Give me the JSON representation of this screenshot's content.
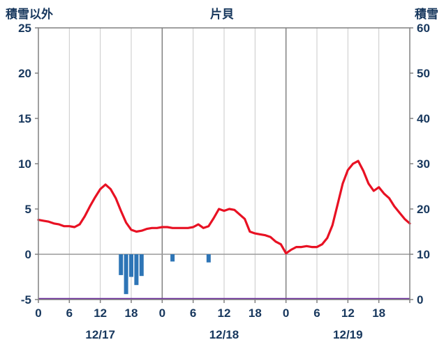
{
  "chart_data": {
    "type": "line+bar",
    "title": "片貝",
    "left_axis": {
      "label": "積雪以外",
      "min": -5,
      "max": 25,
      "ticks": [
        25,
        20,
        15,
        10,
        5,
        0,
        -5
      ]
    },
    "right_axis": {
      "label": "積雪",
      "min": 0,
      "max": 60,
      "ticks": [
        60,
        50,
        40,
        30,
        20,
        10,
        0
      ]
    },
    "x_axis": {
      "days": [
        "12/17",
        "12/18",
        "12/19"
      ],
      "hour_ticks": [
        0,
        6,
        12,
        18
      ],
      "total_hours": 72
    },
    "grid": {
      "minor_color": "#c8c8c8",
      "day_color": "#808080",
      "zero_line_color": "#9a9a9a",
      "border_color": "#808080"
    },
    "text_color": "#17375d",
    "series": [
      {
        "name": "temperature-line",
        "type": "line",
        "axis": "left",
        "color": "#e81123",
        "step_hours": 1,
        "values": [
          3.8,
          3.7,
          3.6,
          3.4,
          3.3,
          3.1,
          3.1,
          3.0,
          3.3,
          4.2,
          5.3,
          6.3,
          7.2,
          7.7,
          7.2,
          6.2,
          4.8,
          3.5,
          2.7,
          2.5,
          2.6,
          2.8,
          2.9,
          2.9,
          3.0,
          3.0,
          2.9,
          2.9,
          2.9,
          2.9,
          3.0,
          3.3,
          2.9,
          3.1,
          4.0,
          5.0,
          4.8,
          5.0,
          4.9,
          4.4,
          3.9,
          2.5,
          2.3,
          2.2,
          2.1,
          1.9,
          1.4,
          1.1,
          0.1,
          0.5,
          0.8,
          0.8,
          0.9,
          0.8,
          0.8,
          1.1,
          1.8,
          3.2,
          5.5,
          7.8,
          9.3,
          10.0,
          10.3,
          9.2,
          7.8,
          7.0,
          7.4,
          6.7,
          6.2,
          5.3,
          4.6,
          3.9,
          3.4
        ]
      },
      {
        "name": "precipitation-bars",
        "type": "bar",
        "axis": "left",
        "color": "#2e75b6",
        "points": [
          {
            "hour": 16,
            "value": -2.3
          },
          {
            "hour": 17,
            "value": -4.4
          },
          {
            "hour": 18,
            "value": -2.5
          },
          {
            "hour": 19,
            "value": -3.4
          },
          {
            "hour": 20,
            "value": -2.4
          },
          {
            "hour": 26,
            "value": -0.8
          },
          {
            "hour": 33,
            "value": -0.9
          }
        ]
      },
      {
        "name": "snow-depth-line",
        "type": "line",
        "axis": "right",
        "color": "#7030a0",
        "constant_value": 0
      }
    ]
  }
}
